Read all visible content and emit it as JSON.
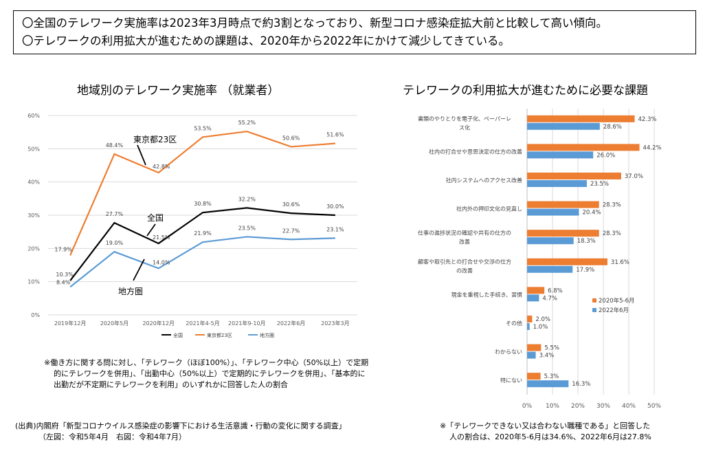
{
  "summary": {
    "line1": "〇全国のテレワーク実施率は2023年3月時点で約3割となっており、新型コロナ感染症拡大前と比較して高い傾向。",
    "line2": "〇テレワークの利用拡大が進むための課題は、2020年から2022年にかけて減少してきている。"
  },
  "left_note": {
    "line1": "※働き方に関する問に対し、「テレワーク（ほぼ100%）」、「テレワーク中心（50%以上）で定期",
    "line2": "的にテレワークを併用」、「出勤中心（50%以上）で定期的にテレワークを併用」、「基本的に",
    "line3": "出勤だが不定期にテレワークを利用」のいずれかに回答した人の割合"
  },
  "source": {
    "line1": "(出典)内閣府「新型コロナウイルス感染症の影響下における生活意識・行動の変化に関する調査」",
    "line2": "（左図：令和5年4月　右図：令和4年7月）"
  },
  "right_note": {
    "line1": "※「テレワークできない又は合わない職種である」と回答した",
    "line2": "人の割合は、2020年5-6月は34.6%、2022年6月は27.8%"
  },
  "chart_data": [
    {
      "type": "line",
      "title": "地域別のテレワーク実施率 （就業者）",
      "categories": [
        "2019年12月",
        "2020年5月",
        "2020年12月",
        "2021年4-5月",
        "2021年9-10月",
        "2022年6月",
        "2023年3月"
      ],
      "ylim": [
        0,
        60
      ],
      "yticks": [
        "0%",
        "10%",
        "20%",
        "30%",
        "40%",
        "50%",
        "60%"
      ],
      "grid": true,
      "legend": "bottom",
      "series": [
        {
          "name": "全国",
          "color": "#000000",
          "values": [
            10.3,
            27.7,
            21.5,
            30.8,
            32.2,
            30.6,
            30.0
          ],
          "labels": [
            "10.3%",
            "27.7%",
            "21.5%",
            "30.8%",
            "32.2%",
            "30.6%",
            "30.0%"
          ]
        },
        {
          "name": "東京都23区",
          "color": "#ed7d31",
          "values": [
            17.9,
            48.4,
            42.8,
            53.5,
            55.2,
            50.6,
            51.6
          ],
          "labels": [
            "17.9%",
            "48.4%",
            "42.8%",
            "53.5%",
            "55.2%",
            "50.6%",
            "51.6%"
          ]
        },
        {
          "name": "地方圏",
          "color": "#5b9bd5",
          "values": [
            8.4,
            19.0,
            14.0,
            21.9,
            23.5,
            22.7,
            23.1
          ],
          "labels": [
            "8.4%",
            "19.0%",
            "14.0%",
            "21.9%",
            "23.5%",
            "22.7%",
            "23.1%"
          ]
        }
      ],
      "annotations": [
        "東京都23区",
        "全国",
        "地方圏"
      ]
    },
    {
      "type": "bar",
      "orientation": "horizontal",
      "title": "テレワークの利用拡大が進むために必要な課題",
      "categories": [
        [
          "書類のやりとりを電子化、ペーパーレ",
          "ス化"
        ],
        [
          "社内の打合せや意思決定の仕方の改善"
        ],
        [
          "社内システムへのアクセス改善"
        ],
        [
          "社内外の押印文化の見直し"
        ],
        [
          "仕事の進捗状況の確認や共有の仕方の",
          "改善"
        ],
        [
          "顧客や取引先との打合せや交渉の仕方",
          "の改善"
        ],
        [
          "現金を重視した手続き、習慣"
        ],
        [
          "その他"
        ],
        [
          "わからない"
        ],
        [
          "特にない"
        ]
      ],
      "xlim": [
        0,
        50
      ],
      "xticks": [
        "0%",
        "10%",
        "20%",
        "30%",
        "40%",
        "50%"
      ],
      "grid": true,
      "legend": "right",
      "series": [
        {
          "name": "2020年5-6月",
          "color": "#ed7d31",
          "values": [
            42.3,
            44.2,
            37.0,
            28.3,
            28.3,
            31.6,
            6.8,
            2.0,
            5.5,
            5.3
          ],
          "labels": [
            "42.3%",
            "44.2%",
            "37.0%",
            "28.3%",
            "28.3%",
            "31.6%",
            "6.8%",
            "2.0%",
            "5.5%",
            "5.3%"
          ]
        },
        {
          "name": "2022年6月",
          "color": "#5b9bd5",
          "values": [
            28.6,
            26.0,
            23.5,
            20.4,
            18.3,
            17.9,
            4.7,
            1.0,
            3.4,
            16.3
          ],
          "labels": [
            "28.6%",
            "26.0%",
            "23.5%",
            "20.4%",
            "18.3%",
            "17.9%",
            "4.7%",
            "1.0%",
            "3.4%",
            "16.3%"
          ]
        }
      ]
    }
  ]
}
